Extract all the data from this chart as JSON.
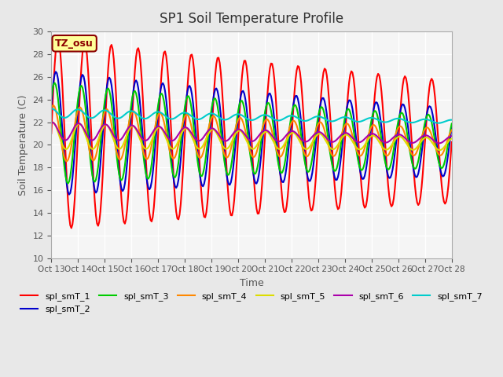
{
  "title": "SP1 Soil Temperature Profile",
  "xlabel": "Time",
  "ylabel": "Soil Temperature (C)",
  "ylim": [
    10,
    30
  ],
  "annotation_text": "TZ_osu",
  "annotation_color": "#8B0000",
  "annotation_bg": "#FFFF99",
  "background_color": "#E8E8E8",
  "plot_bg": "#F5F5F5",
  "grid_color": "#FFFFFF",
  "series": {
    "spl_smT_1": {
      "color": "#FF0000",
      "lw": 1.5,
      "amplitude": 8.5,
      "mean": 21.0,
      "phase": 0.0,
      "decay": 0.03
    },
    "spl_smT_2": {
      "color": "#0000CC",
      "lw": 1.5,
      "amplitude": 5.5,
      "mean": 21.0,
      "phase": 0.15,
      "decay": 0.04
    },
    "spl_smT_3": {
      "color": "#00CC00",
      "lw": 1.5,
      "amplitude": 4.5,
      "mean": 21.0,
      "phase": 0.25,
      "decay": 0.045
    },
    "spl_smT_4": {
      "color": "#FF8800",
      "lw": 1.5,
      "amplitude": 2.5,
      "mean": 21.0,
      "phase": 0.35,
      "decay": 0.05
    },
    "spl_smT_5": {
      "color": "#DDDD00",
      "lw": 1.5,
      "amplitude": 1.2,
      "mean": 20.8,
      "phase": 0.4,
      "decay": 0.055
    },
    "spl_smT_6": {
      "color": "#AA00AA",
      "lw": 1.5,
      "amplitude": 0.8,
      "mean": 21.2,
      "phase": 0.45,
      "decay": 0.06
    },
    "spl_smT_7": {
      "color": "#00CCCC",
      "lw": 1.5,
      "amplitude": 0.4,
      "mean": 22.8,
      "phase": 0.5,
      "decay": 0.065
    }
  },
  "xtick_labels": [
    "Oct 13",
    "Oct 14",
    "Oct 15",
    "Oct 16",
    "Oct 17",
    "Oct 18",
    "Oct 19",
    "Oct 20",
    "Oct 21",
    "Oct 22",
    "Oct 23",
    "Oct 24",
    "Oct 25",
    "Oct 26",
    "Oct 27",
    "Oct 28",
    ""
  ],
  "legend_order": [
    "spl_smT_1",
    "spl_smT_2",
    "spl_smT_3",
    "spl_smT_4",
    "spl_smT_5",
    "spl_smT_6",
    "spl_smT_7"
  ]
}
